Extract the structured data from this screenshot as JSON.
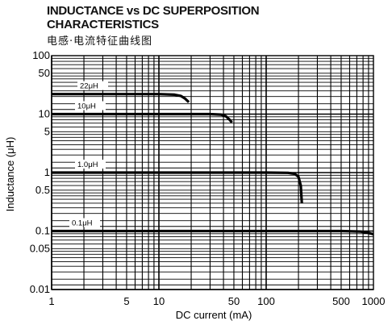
{
  "chart_data": {
    "type": "line",
    "title": "INDUCTANCE vs DC SUPERPOSITION",
    "title_line2": "CHARACTERISTICS",
    "subtitle": "电感·电流特征曲线图",
    "xlabel": "DC current (mA)",
    "ylabel": "Inductance (μH)",
    "x_scale": "log",
    "y_scale": "log",
    "xlim": [
      1,
      1000
    ],
    "ylim": [
      0.01,
      100
    ],
    "grid": true,
    "x_ticks": [
      {
        "value": 1,
        "label": "1"
      },
      {
        "value": 5,
        "label": "5"
      },
      {
        "value": 10,
        "label": "10"
      },
      {
        "value": 50,
        "label": "50"
      },
      {
        "value": 100,
        "label": "100"
      },
      {
        "value": 500,
        "label": "500"
      },
      {
        "value": 1000,
        "label": "1000"
      }
    ],
    "y_ticks": [
      {
        "value": 100,
        "label": "100"
      },
      {
        "value": 50,
        "label": "50"
      },
      {
        "value": 10,
        "label": "10"
      },
      {
        "value": 5,
        "label": "5"
      },
      {
        "value": 1,
        "label": "1"
      },
      {
        "value": 0.5,
        "label": "0.5"
      },
      {
        "value": 0.1,
        "label": "0.1"
      },
      {
        "value": 0.05,
        "label": "0.05"
      },
      {
        "value": 0.01,
        "label": "0.01"
      }
    ],
    "series": [
      {
        "name": "22μH",
        "x": [
          1,
          5,
          10,
          14,
          16,
          17.5,
          19
        ],
        "y": [
          22,
          22,
          22,
          21.5,
          20.5,
          18.5,
          16
        ]
      },
      {
        "name": "10μH",
        "x": [
          1,
          10,
          30,
          38,
          42,
          45,
          48
        ],
        "y": [
          10,
          10,
          10,
          9.8,
          9.2,
          8.2,
          7.2
        ]
      },
      {
        "name": "1.0μH",
        "x": [
          1,
          10,
          100,
          160,
          185,
          200,
          210,
          215
        ],
        "y": [
          1,
          1,
          1,
          0.99,
          0.95,
          0.85,
          0.6,
          0.3
        ]
      },
      {
        "name": "0.1μH",
        "x": [
          1,
          10,
          100,
          500,
          750,
          900,
          1000
        ],
        "y": [
          0.1,
          0.1,
          0.1,
          0.1,
          0.098,
          0.093,
          0.088
        ]
      }
    ]
  }
}
